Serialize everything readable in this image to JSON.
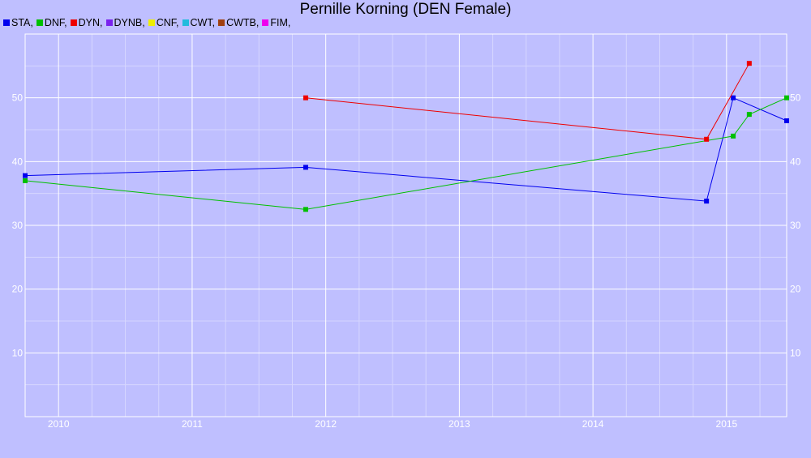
{
  "chart_data": {
    "type": "line",
    "title": "Pernille Korning (DEN Female)",
    "xlabel": "",
    "ylabel": "",
    "legend": [
      {
        "name": "STA",
        "color": "#0000ee"
      },
      {
        "name": "DNF",
        "color": "#00c000"
      },
      {
        "name": "DYN",
        "color": "#ee0000"
      },
      {
        "name": "DYNB",
        "color": "#7a22ee"
      },
      {
        "name": "CNF",
        "color": "#eeee00"
      },
      {
        "name": "CWT",
        "color": "#22bbdd"
      },
      {
        "name": "CWTB",
        "color": "#a04010"
      },
      {
        "name": "FIM",
        "color": "#ee00ee"
      }
    ],
    "legend_separator": ",",
    "legend_position": "top-left",
    "xlim": [
      2009.75,
      2015.45
    ],
    "ylim": [
      0,
      60
    ],
    "x_ticks": [
      2010,
      2011,
      2012,
      2013,
      2014,
      2015
    ],
    "y_ticks": [
      10,
      20,
      30,
      40,
      50
    ],
    "grid": true,
    "series": [
      {
        "name": "STA",
        "color": "#0000ee",
        "points": [
          [
            2009.75,
            37.8
          ],
          [
            2011.85,
            39.1
          ],
          [
            2014.85,
            33.8
          ],
          [
            2015.05,
            50.0
          ],
          [
            2015.45,
            46.4
          ]
        ]
      },
      {
        "name": "DNF",
        "color": "#00c000",
        "points": [
          [
            2009.75,
            37.0
          ],
          [
            2011.85,
            32.5
          ],
          [
            2015.05,
            44.0
          ],
          [
            2015.17,
            47.4
          ],
          [
            2015.45,
            50.0
          ]
        ]
      },
      {
        "name": "DYN",
        "color": "#ee0000",
        "points": [
          [
            2011.85,
            50.0
          ],
          [
            2014.85,
            43.5
          ],
          [
            2015.17,
            55.4
          ]
        ]
      }
    ]
  }
}
